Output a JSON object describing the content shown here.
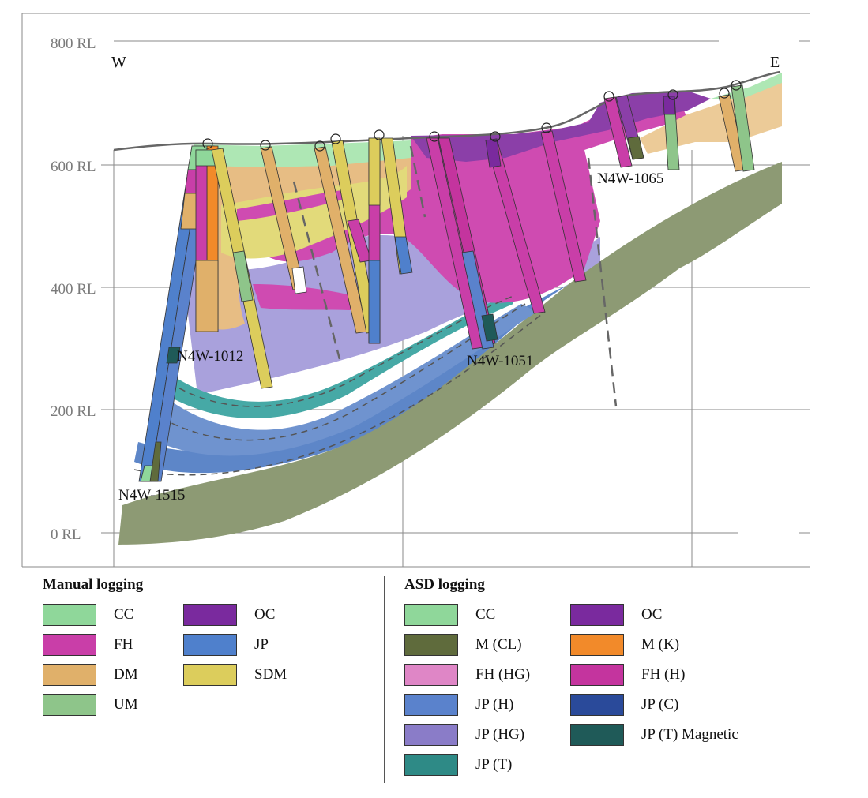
{
  "section": {
    "direction_left": "W",
    "direction_right": "E",
    "rl_labels": [
      "800 RL",
      "600 RL",
      "400 RL",
      "200 RL",
      "0 RL"
    ],
    "holes": [
      "N4W-1012",
      "N4W-1515",
      "N4W-1051",
      "N4W-1065"
    ],
    "unit_colors": {
      "CC": "#8fd79a",
      "FH": "#c93ea8",
      "DM": "#e0b06a",
      "UM": "#8ec58a",
      "OC": "#7a2a9e",
      "JP": "#4f80cc",
      "SDM": "#dccd5c",
      "M_CL": "#5f6b3c",
      "M_K": "#f28a2a",
      "FH_HG": "#df86c6",
      "FH_H": "#c4349e",
      "JP_H": "#5a82cc",
      "JP_C": "#2a4a9a",
      "JP_HG": "#8a7cc8",
      "JP_T": "#2e8a86",
      "JP_T_Magnetic": "#1f5a58",
      "basement": "#8d9a74"
    }
  },
  "manual_logging": {
    "title": "Manual logging",
    "items": [
      {
        "label": "CC",
        "color": "#8fd79a"
      },
      {
        "label": "OC",
        "color": "#7a2a9e"
      },
      {
        "label": "FH",
        "color": "#c93ea8"
      },
      {
        "label": "JP",
        "color": "#4f80cc"
      },
      {
        "label": "DM",
        "color": "#e0b06a"
      },
      {
        "label": "SDM",
        "color": "#dccd5c"
      },
      {
        "label": "UM",
        "color": "#8ec58a"
      }
    ]
  },
  "asd_logging": {
    "title": "ASD logging",
    "items": [
      {
        "label": "CC",
        "color": "#8fd79a"
      },
      {
        "label": "OC",
        "color": "#7a2a9e"
      },
      {
        "label": "M (CL)",
        "color": "#5f6b3c"
      },
      {
        "label": "M (K)",
        "color": "#f28a2a"
      },
      {
        "label": "FH (HG)",
        "color": "#df86c6"
      },
      {
        "label": "FH (H)",
        "color": "#c4349e"
      },
      {
        "label": "JP (H)",
        "color": "#5a82cc"
      },
      {
        "label": "JP (C)",
        "color": "#2a4a9a"
      },
      {
        "label": "JP (HG)",
        "color": "#8a7cc8"
      },
      {
        "label": "JP (T) Magnetic",
        "color": "#1f5a58"
      },
      {
        "label": "JP (T)",
        "color": "#2e8a86"
      }
    ]
  }
}
